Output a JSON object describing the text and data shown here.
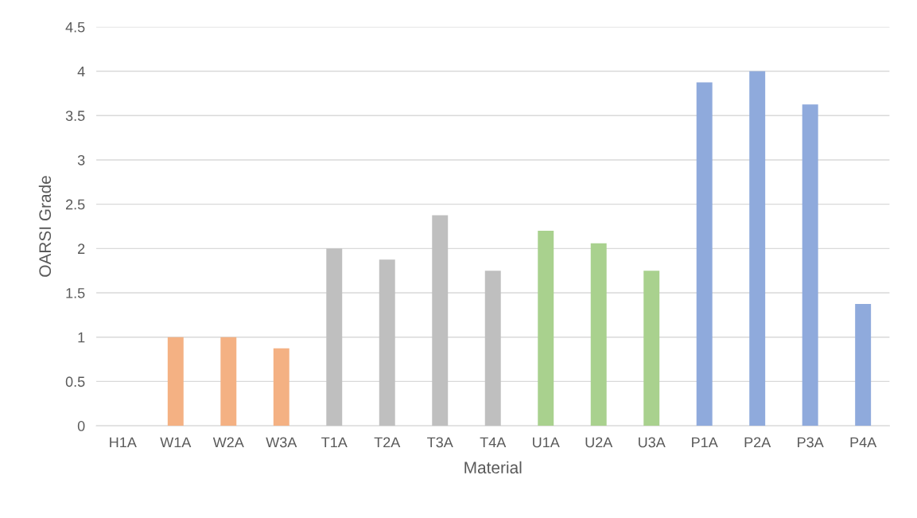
{
  "chart_data": {
    "type": "bar",
    "xlabel": "Material",
    "ylabel": "OARSI Grade",
    "categories": [
      "H1A",
      "W1A",
      "W2A",
      "W3A",
      "T1A",
      "T2A",
      "T3A",
      "T4A",
      "U1A",
      "U2A",
      "U3A",
      "P1A",
      "P2A",
      "P3A",
      "P4A"
    ],
    "values": [
      0,
      1,
      1,
      0.875,
      2,
      1.875,
      2.375,
      1.75,
      2.2,
      2.06,
      1.75,
      3.875,
      4,
      3.625,
      1.375
    ],
    "colors": [
      "#bfbfbf",
      "#f4b183",
      "#f4b183",
      "#f4b183",
      "#bfbfbf",
      "#bfbfbf",
      "#bfbfbf",
      "#bfbfbf",
      "#a9d18e",
      "#a9d18e",
      "#a9d18e",
      "#8faadc",
      "#8faadc",
      "#8faadc",
      "#8faadc"
    ],
    "ylim": [
      0,
      4.5
    ],
    "yticks": [
      0,
      0.5,
      1,
      1.5,
      2,
      2.5,
      3,
      3.5,
      4,
      4.5
    ],
    "grid": "y",
    "legend": false
  }
}
